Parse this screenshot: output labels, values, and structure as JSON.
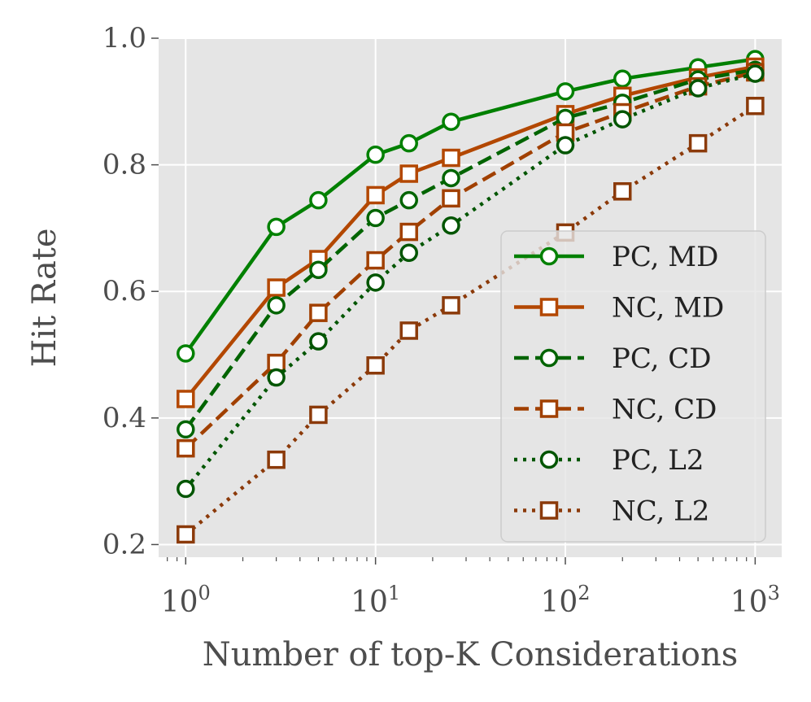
{
  "chart_data": {
    "type": "line",
    "xscale": "log",
    "x": [
      1,
      3,
      5,
      10,
      15,
      25,
      100,
      200,
      500,
      1000
    ],
    "xlim": [
      0.72,
      1380
    ],
    "ylim": [
      0.18,
      1.0
    ],
    "xlabel": "Number of top-K Considerations",
    "ylabel": "Hit Rate",
    "grid": true,
    "legend_position": "center-right",
    "y_ticks": [
      {
        "value": 0.2,
        "label": "0.2"
      },
      {
        "value": 0.4,
        "label": "0.4"
      },
      {
        "value": 0.6,
        "label": "0.6"
      },
      {
        "value": 0.8,
        "label": "0.8"
      },
      {
        "value": 1.0,
        "label": "1.0"
      }
    ],
    "x_ticks": [
      {
        "value": 1,
        "base": "10",
        "exp": "0"
      },
      {
        "value": 10,
        "base": "10",
        "exp": "1"
      },
      {
        "value": 100,
        "base": "10",
        "exp": "2"
      },
      {
        "value": 1000,
        "base": "10",
        "exp": "3"
      }
    ],
    "series": [
      {
        "name": "PC, MD",
        "color": "#008000",
        "dash": "solid",
        "marker": "circle",
        "values": [
          0.502,
          0.702,
          0.744,
          0.816,
          0.834,
          0.868,
          0.916,
          0.936,
          0.954,
          0.967
        ]
      },
      {
        "name": "NC, MD",
        "color": "#b34700",
        "dash": "solid",
        "marker": "square",
        "values": [
          0.43,
          0.606,
          0.651,
          0.752,
          0.786,
          0.811,
          0.88,
          0.909,
          0.938,
          0.955
        ]
      },
      {
        "name": "PC, CD",
        "color": "#006400",
        "dash": "dashed",
        "marker": "circle",
        "values": [
          0.382,
          0.578,
          0.634,
          0.716,
          0.744,
          0.779,
          0.874,
          0.898,
          0.935,
          0.95
        ]
      },
      {
        "name": "NC, CD",
        "color": "#a14000",
        "dash": "dashed",
        "marker": "square",
        "values": [
          0.352,
          0.487,
          0.566,
          0.649,
          0.694,
          0.747,
          0.851,
          0.883,
          0.924,
          0.946
        ]
      },
      {
        "name": "PC, L2",
        "color": "#005500",
        "dash": "dotted",
        "marker": "circle",
        "values": [
          0.288,
          0.464,
          0.521,
          0.614,
          0.661,
          0.704,
          0.831,
          0.872,
          0.921,
          0.944
        ]
      },
      {
        "name": "NC, L2",
        "color": "#8b3a0a",
        "dash": "dotted",
        "marker": "square",
        "values": [
          0.216,
          0.334,
          0.405,
          0.483,
          0.538,
          0.578,
          0.693,
          0.758,
          0.834,
          0.893
        ]
      }
    ]
  }
}
